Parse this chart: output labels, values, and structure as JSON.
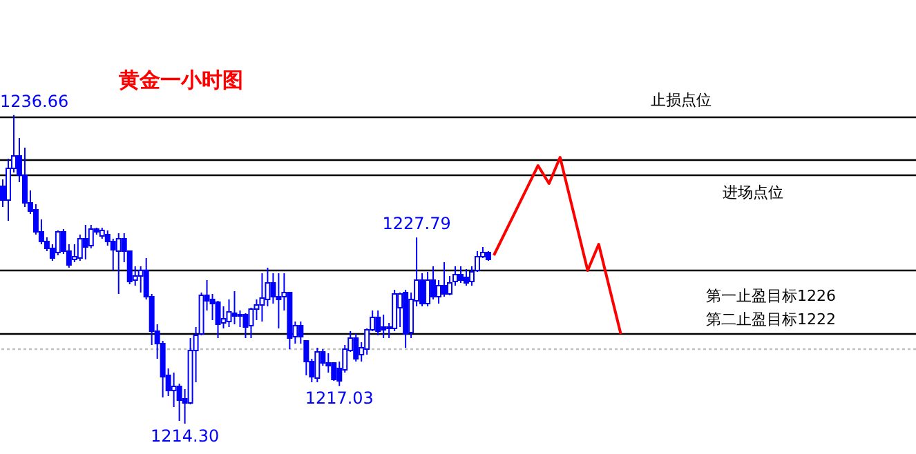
{
  "chart_data": {
    "type": "candlestick",
    "title": "黄金一小时图",
    "color": "#0000ff",
    "categories": [
      null,
      null,
      null,
      null,
      null,
      null,
      null,
      null,
      null,
      null,
      null,
      null,
      null,
      null,
      null,
      null,
      null,
      null,
      null,
      null,
      null,
      null,
      null,
      null,
      null,
      null,
      null,
      null,
      null,
      null,
      null,
      null,
      null,
      null,
      null,
      null,
      null,
      null,
      null,
      null,
      null,
      null,
      null,
      null,
      null,
      null,
      null,
      null,
      null,
      null,
      null,
      null,
      null,
      null,
      null,
      null,
      null,
      null,
      null,
      null,
      null,
      null,
      null,
      null,
      null,
      null,
      null,
      null,
      null,
      null,
      null,
      null,
      null,
      null,
      null,
      null,
      null,
      null,
      null,
      null,
      null,
      null,
      null,
      null,
      null,
      null,
      null,
      null,
      null,
      null,
      null,
      null,
      null,
      null,
      null,
      null,
      null,
      null,
      null,
      null,
      null,
      null,
      null,
      null,
      null,
      null,
      null,
      null,
      null,
      null,
      null,
      null,
      null,
      null,
      null,
      null,
      null,
      null,
      null,
      null,
      null,
      null,
      null,
      null,
      null,
      null,
      null,
      null,
      null,
      null,
      null,
      null,
      null,
      null,
      null,
      null,
      null,
      null,
      null,
      null,
      null,
      null,
      null,
      null,
      null,
      null,
      null,
      null,
      null,
      null,
      null,
      null,
      null,
      null,
      null,
      null,
      null,
      null,
      null,
      null,
      null,
      null,
      null,
      null,
      null,
      null
    ],
    "ohlc": [
      [
        1231.5,
        1232.0,
        1230.0,
        1230.5
      ],
      [
        1230.5,
        1233.5,
        1229.0,
        1232.8
      ],
      [
        1232.8,
        1236.66,
        1232.5,
        1233.7
      ],
      [
        1233.7,
        1235.0,
        1231.8,
        1232.3
      ],
      [
        1232.3,
        1234.3,
        1230.0,
        1230.3
      ],
      [
        1230.3,
        1231.2,
        1229.5,
        1229.7
      ],
      [
        1229.8,
        1230.2,
        1228.0,
        1228.2
      ],
      [
        1228.2,
        1229.1,
        1227.3,
        1227.5
      ],
      [
        1227.5,
        1227.8,
        1226.8,
        1227.0
      ],
      [
        1227.0,
        1227.3,
        1226.1,
        1226.3
      ],
      [
        1226.7,
        1228.3,
        1226.5,
        1228.2
      ],
      [
        1228.2,
        1228.4,
        1226.6,
        1226.8
      ],
      [
        1226.8,
        1227.3,
        1225.6,
        1225.8
      ],
      [
        1226.2,
        1227.3,
        1226.0,
        1226.4
      ],
      [
        1226.3,
        1228.0,
        1226.1,
        1227.7
      ],
      [
        1227.7,
        1228.7,
        1226.2,
        1227.1
      ],
      [
        1227.2,
        1228.7,
        1227.0,
        1228.4
      ],
      [
        1228.4,
        1228.5,
        1228.0,
        1228.2
      ],
      [
        1227.9,
        1228.5,
        1227.7,
        1228.3
      ],
      [
        1228.0,
        1228.3,
        1227.2,
        1227.5
      ],
      [
        1227.5,
        1227.7,
        1225.4,
        1226.9
      ],
      [
        1226.8,
        1228.1,
        1223.7,
        1227.7
      ],
      [
        1227.7,
        1228.1,
        1226.0,
        1226.8
      ],
      [
        1226.8,
        1226.8,
        1224.4,
        1224.6
      ],
      [
        1224.7,
        1225.7,
        1224.3,
        1225.0
      ],
      [
        1225.0,
        1225.7,
        1223.8,
        1225.4
      ],
      [
        1225.4,
        1226.3,
        1223.3,
        1223.5
      ],
      [
        1223.5,
        1223.7,
        1220.0,
        1221.0
      ],
      [
        1221.0,
        1221.5,
        1219.0,
        1220.1
      ],
      [
        1220.1,
        1220.3,
        1216.2,
        1217.7
      ],
      [
        1217.8,
        1218.3,
        1216.3,
        1216.7
      ],
      [
        1216.7,
        1218.0,
        1215.5,
        1217.0
      ],
      [
        1217.0,
        1217.2,
        1214.5,
        1216.0
      ],
      [
        1216.1,
        1216.8,
        1214.3,
        1215.8
      ],
      [
        1215.8,
        1220.5,
        1215.7,
        1219.6
      ],
      [
        1219.6,
        1221.3,
        1217.3,
        1220.7
      ],
      [
        1220.8,
        1223.8,
        1220.7,
        1223.6
      ],
      [
        1223.6,
        1224.7,
        1222.5,
        1223.2
      ],
      [
        1223.3,
        1223.7,
        1221.8,
        1223.0
      ],
      [
        1223.1,
        1223.2,
        1220.5,
        1221.5
      ],
      [
        1221.6,
        1222.8,
        1221.2,
        1221.9
      ],
      [
        1221.7,
        1223.3,
        1221.3,
        1222.4
      ],
      [
        1222.3,
        1223.9,
        1221.5,
        1222.1
      ],
      [
        1222.2,
        1222.5,
        1221.3,
        1222.1
      ],
      [
        1222.2,
        1222.3,
        1220.5,
        1221.3
      ],
      [
        1221.4,
        1222.7,
        1220.5,
        1222.6
      ],
      [
        1222.6,
        1223.3,
        1221.8,
        1222.9
      ],
      [
        1222.9,
        1225.2,
        1221.7,
        1223.4
      ],
      [
        1223.3,
        1225.6,
        1222.8,
        1224.5
      ],
      [
        1224.5,
        1225.2,
        1223.0,
        1223.5
      ],
      [
        1223.5,
        1225.2,
        1221.2,
        1223.3
      ],
      [
        1223.5,
        1225.2,
        1222.5,
        1223.8
      ],
      [
        1223.8,
        1223.8,
        1219.7,
        1220.5
      ],
      [
        1220.6,
        1221.7,
        1220.1,
        1221.4
      ],
      [
        1221.4,
        1221.7,
        1220.1,
        1220.6
      ],
      [
        1220.3,
        1220.3,
        1217.8,
        1218.8
      ],
      [
        1218.8,
        1219.0,
        1217.3,
        1217.7
      ],
      [
        1217.6,
        1219.8,
        1217.3,
        1219.5
      ],
      [
        1219.5,
        1219.7,
        1218.5,
        1218.7
      ],
      [
        1218.7,
        1219.4,
        1218.0,
        1218.5
      ],
      [
        1218.7,
        1218.7,
        1217.4,
        1217.5
      ],
      [
        1218.3,
        1218.8,
        1217.03,
        1217.4
      ],
      [
        1218.2,
        1220.0,
        1218.0,
        1219.7
      ],
      [
        1219.6,
        1221.0,
        1219.5,
        1220.5
      ],
      [
        1220.5,
        1220.8,
        1218.8,
        1219.0
      ],
      [
        1219.3,
        1220.2,
        1218.8,
        1219.8
      ],
      [
        1219.7,
        1221.2,
        1219.3,
        1221.1
      ],
      [
        1221.1,
        1222.5,
        1221.0,
        1222.0
      ],
      [
        1222.0,
        1222.5,
        1220.7,
        1221.0
      ],
      [
        1221.3,
        1222.2,
        1220.5,
        1221.1
      ],
      [
        1221.3,
        1221.6,
        1220.5,
        1221.2
      ],
      [
        1221.2,
        1224.0,
        1221.0,
        1223.7
      ],
      [
        1222.7,
        1223.8,
        1221.3,
        1223.7
      ],
      [
        1223.8,
        1224.0,
        1219.8,
        1220.8
      ],
      [
        1220.9,
        1223.8,
        1220.5,
        1223.3
      ],
      [
        1223.2,
        1227.79,
        1222.8,
        1224.7
      ],
      [
        1224.7,
        1225.2,
        1222.8,
        1223.0
      ],
      [
        1223.0,
        1225.3,
        1222.8,
        1224.7
      ],
      [
        1224.7,
        1225.7,
        1223.3,
        1223.5
      ],
      [
        1223.5,
        1224.7,
        1223.0,
        1224.3
      ],
      [
        1224.3,
        1226.0,
        1223.5,
        1223.7
      ],
      [
        1223.7,
        1225.0,
        1223.6,
        1224.5
      ],
      [
        1224.6,
        1225.7,
        1224.3,
        1225.1
      ],
      [
        1225.1,
        1225.7,
        1224.5,
        1224.7
      ],
      [
        1224.9,
        1225.5,
        1224.3,
        1224.5
      ],
      [
        1224.6,
        1225.7,
        1224.3,
        1225.3
      ],
      [
        1225.4,
        1226.8,
        1225.3,
        1226.4
      ],
      [
        1226.4,
        1227.1,
        1226.3,
        1226.7
      ],
      [
        1226.7,
        1226.8,
        1226.1,
        1226.2
      ],
      null,
      null,
      null,
      null,
      null,
      null,
      null,
      null,
      null,
      null,
      null,
      null,
      null,
      null,
      null,
      null,
      null,
      null,
      null,
      null,
      null,
      null,
      null,
      null,
      null,
      null,
      null,
      null,
      null,
      null,
      null,
      null,
      null,
      null,
      null,
      null,
      null,
      null,
      null,
      null,
      null,
      null,
      null,
      null,
      null,
      null,
      null,
      null,
      null,
      null,
      null,
      null,
      null,
      null,
      null,
      null,
      null,
      null,
      null,
      null,
      null,
      null,
      null,
      null,
      null,
      null,
      null,
      null,
      null,
      null,
      null,
      null,
      null,
      null,
      null,
      null,
      null
    ],
    "series": [
      {
        "type": "line",
        "color": "#ff0000",
        "values": [
          null,
          null,
          null,
          null,
          null,
          null,
          null,
          null,
          null,
          null,
          null,
          null,
          null,
          null,
          null,
          null,
          null,
          null,
          null,
          null,
          null,
          null,
          null,
          null,
          null,
          null,
          null,
          null,
          null,
          null,
          null,
          null,
          null,
          null,
          null,
          null,
          null,
          null,
          null,
          null,
          null,
          null,
          null,
          null,
          null,
          null,
          null,
          null,
          null,
          null,
          null,
          null,
          null,
          null,
          null,
          null,
          null,
          null,
          null,
          null,
          null,
          null,
          null,
          null,
          null,
          null,
          null,
          null,
          null,
          null,
          null,
          null,
          null,
          null,
          null,
          null,
          null,
          null,
          null,
          null,
          null,
          null,
          null,
          null,
          null,
          null,
          null,
          null,
          null,
          1226.5,
          null,
          null,
          null,
          null,
          null,
          null,
          null,
          1233.0,
          null,
          1231.7,
          null,
          1233.6,
          null,
          null,
          null,
          null,
          1225.4,
          null,
          1227.3,
          null,
          null,
          null,
          1220.8,
          null,
          null,
          null,
          null,
          null,
          null,
          null,
          null,
          null,
          null,
          null,
          null,
          null,
          null,
          null,
          null,
          null,
          null,
          null,
          null,
          null,
          null,
          null,
          null,
          null,
          null,
          null,
          null,
          null,
          null,
          null,
          null,
          null,
          null,
          null,
          null,
          null,
          null,
          null,
          null,
          null,
          null,
          null,
          null,
          null,
          null,
          null,
          null,
          null,
          null,
          null,
          null,
          null
        ]
      }
    ],
    "ylim": [
      1212.1,
      1245.0
    ],
    "tick_labels": false,
    "ref_lines": [
      {
        "axis": "y",
        "value": 1236.5,
        "color": "#000000"
      },
      {
        "axis": "y",
        "value": 1233.4,
        "color": "#000000"
      },
      {
        "axis": "y",
        "value": 1232.3,
        "color": "#000000"
      },
      {
        "axis": "y",
        "value": 1225.4,
        "color": "#000000"
      },
      {
        "axis": "y",
        "value": 1220.8,
        "color": "#000000"
      },
      {
        "axis": "y",
        "value": 1219.7,
        "color": "#c0c0c0",
        "line_style": "dotted"
      }
    ],
    "annotations": [
      {
        "text": "1236.66",
        "y": 1236.66
      },
      {
        "text": "1227.79",
        "y": 1227.79
      },
      {
        "text": "1217.03",
        "y": 1217.03
      },
      {
        "text": "1214.30",
        "y": 1214.3
      },
      "止损点位",
      "进场点位",
      "第一止盈目标1226",
      "第二止盈目标1222"
    ]
  }
}
